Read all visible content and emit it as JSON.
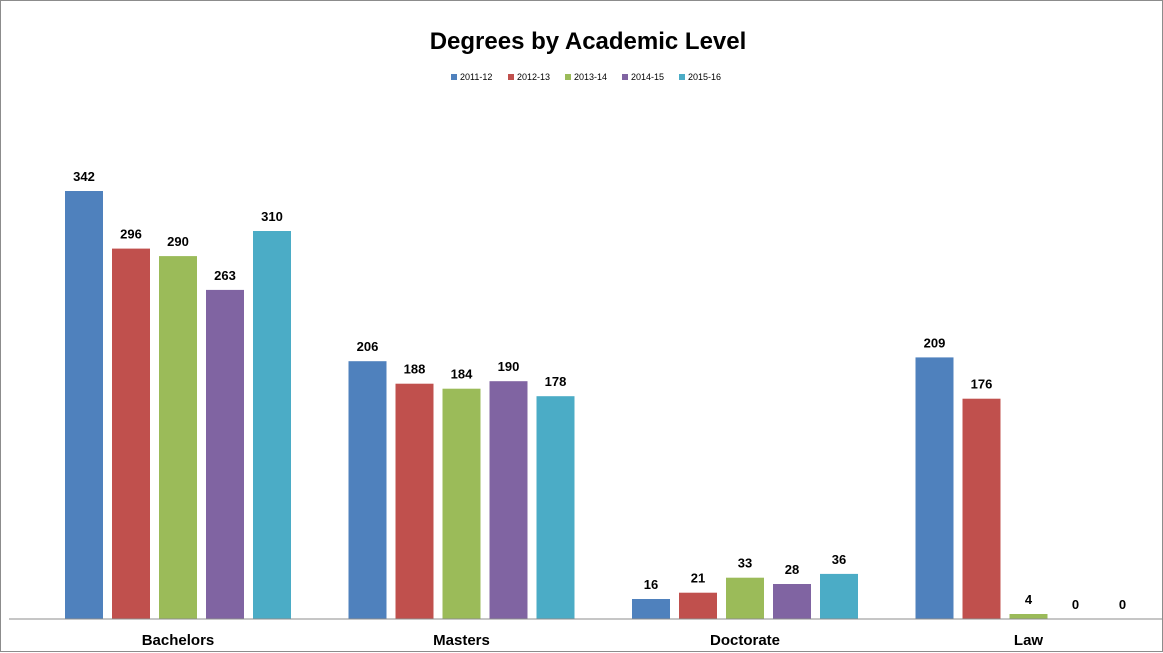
{
  "chart_data": {
    "type": "bar",
    "title": "Degrees by Academic Level",
    "categories": [
      "Bachelors",
      "Masters",
      "Doctorate",
      "Law"
    ],
    "series": [
      {
        "name": "2011-12",
        "color": "#4F81BD",
        "values": [
          342,
          206,
          16,
          209
        ]
      },
      {
        "name": "2012-13",
        "color": "#C0504D",
        "values": [
          296,
          188,
          21,
          176
        ]
      },
      {
        "name": "2013-14",
        "color": "#9BBB59",
        "values": [
          290,
          184,
          33,
          4
        ]
      },
      {
        "name": "2014-15",
        "color": "#8064A2",
        "values": [
          263,
          190,
          28,
          0
        ]
      },
      {
        "name": "2015-16",
        "color": "#4BACC6",
        "values": [
          310,
          178,
          36,
          0
        ]
      }
    ],
    "ylim": [
      0,
      342
    ],
    "xlabel": "",
    "ylabel": "",
    "grid": false,
    "legend_position": "top-center",
    "data_labels": true
  }
}
